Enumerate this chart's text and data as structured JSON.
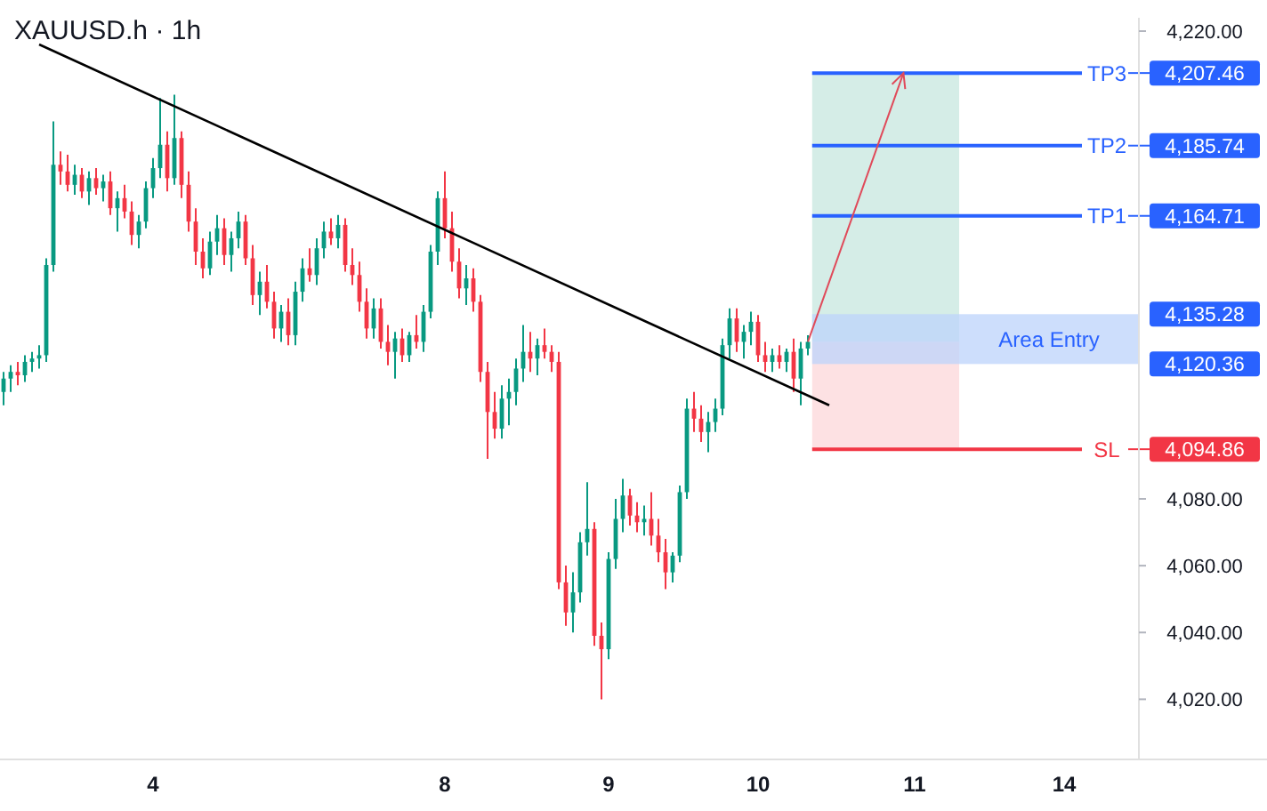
{
  "chart_data": {
    "type": "candlestick",
    "title": "XAUUSD.h · 1h",
    "categories": [
      null,
      null,
      null,
      null,
      null,
      null,
      null,
      null,
      null,
      null,
      null,
      null,
      null,
      null,
      null,
      null,
      null,
      null,
      null,
      null,
      null,
      "4",
      null,
      null,
      null,
      null,
      null,
      null,
      null,
      null,
      null,
      null,
      null,
      null,
      null,
      null,
      null,
      null,
      null,
      null,
      null,
      null,
      null,
      null,
      null,
      null,
      null,
      null,
      null,
      null,
      null,
      null,
      null,
      null,
      null,
      null,
      null,
      null,
      null,
      null,
      null,
      null,
      "8",
      null,
      null,
      null,
      null,
      null,
      null,
      null,
      null,
      null,
      null,
      null,
      null,
      null,
      null,
      null,
      null,
      null,
      null,
      null,
      null,
      null,
      null,
      "9",
      null,
      null,
      null,
      null,
      null,
      null,
      null,
      null,
      null,
      null,
      null,
      null,
      null,
      null,
      null,
      null,
      null,
      null,
      null,
      null,
      "10",
      null,
      null,
      null,
      null,
      null,
      null,
      null,
      null,
      null,
      null,
      null,
      null,
      null,
      null,
      null,
      null,
      null,
      null,
      null,
      null,
      null,
      "11",
      null,
      null,
      null,
      null,
      null,
      null,
      null,
      null,
      null,
      null,
      null,
      null,
      null,
      null,
      null,
      null,
      null,
      null,
      null,
      null,
      "14",
      null,
      null,
      null,
      null,
      null,
      null,
      null,
      null,
      null,
      null
    ],
    "ohlc": [
      [
        4112,
        4118,
        4108,
        4116
      ],
      [
        4116,
        4120,
        4112,
        4118
      ],
      [
        4118,
        4121,
        4114,
        4117
      ],
      [
        4117,
        4123,
        4115,
        4121
      ],
      [
        4121,
        4124,
        4118,
        4122
      ],
      [
        4122,
        4126,
        4119,
        4123
      ],
      [
        4123,
        4152,
        4121,
        4150
      ],
      [
        4150,
        4193,
        4148,
        4180
      ],
      [
        4180,
        4184,
        4174,
        4178
      ],
      [
        4178,
        4183,
        4172,
        4174
      ],
      [
        4174,
        4180,
        4171,
        4177
      ],
      [
        4177,
        4179,
        4170,
        4172
      ],
      [
        4172,
        4178,
        4168,
        4176
      ],
      [
        4176,
        4179,
        4171,
        4173
      ],
      [
        4173,
        4177,
        4169,
        4175
      ],
      [
        4175,
        4178,
        4165,
        4167
      ],
      [
        4167,
        4172,
        4160,
        4170
      ],
      [
        4170,
        4174,
        4164,
        4166
      ],
      [
        4166,
        4169,
        4156,
        4159
      ],
      [
        4159,
        4165,
        4155,
        4163
      ],
      [
        4163,
        4175,
        4161,
        4173
      ],
      [
        4173,
        4182,
        4170,
        4179
      ],
      [
        4179,
        4200,
        4176,
        4186
      ],
      [
        4186,
        4190,
        4172,
        4176
      ],
      [
        4176,
        4201,
        4174,
        4188
      ],
      [
        4188,
        4190,
        4170,
        4174
      ],
      [
        4174,
        4178,
        4160,
        4163
      ],
      [
        4163,
        4167,
        4150,
        4154
      ],
      [
        4154,
        4158,
        4146,
        4149
      ],
      [
        4149,
        4160,
        4147,
        4157
      ],
      [
        4157,
        4165,
        4153,
        4161
      ],
      [
        4161,
        4164,
        4150,
        4153
      ],
      [
        4153,
        4160,
        4148,
        4158
      ],
      [
        4158,
        4166,
        4155,
        4163
      ],
      [
        4163,
        4165,
        4150,
        4152
      ],
      [
        4152,
        4156,
        4138,
        4141
      ],
      [
        4141,
        4148,
        4135,
        4145
      ],
      [
        4145,
        4150,
        4137,
        4139
      ],
      [
        4139,
        4142,
        4128,
        4131
      ],
      [
        4131,
        4138,
        4127,
        4136
      ],
      [
        4136,
        4140,
        4126,
        4129
      ],
      [
        4129,
        4145,
        4126,
        4142
      ],
      [
        4142,
        4152,
        4139,
        4149
      ],
      [
        4149,
        4155,
        4145,
        4147
      ],
      [
        4147,
        4158,
        4144,
        4155
      ],
      [
        4155,
        4163,
        4152,
        4160
      ],
      [
        4160,
        4164,
        4156,
        4158
      ],
      [
        4158,
        4165,
        4155,
        4162
      ],
      [
        4162,
        4164,
        4148,
        4150
      ],
      [
        4150,
        4155,
        4144,
        4147
      ],
      [
        4147,
        4151,
        4136,
        4139
      ],
      [
        4139,
        4143,
        4128,
        4131
      ],
      [
        4131,
        4140,
        4128,
        4137
      ],
      [
        4137,
        4140,
        4125,
        4127
      ],
      [
        4127,
        4132,
        4120,
        4124
      ],
      [
        4124,
        4130,
        4116,
        4128
      ],
      [
        4128,
        4131,
        4121,
        4123
      ],
      [
        4123,
        4130,
        4121,
        4129
      ],
      [
        4129,
        4135,
        4125,
        4127
      ],
      [
        4127,
        4138,
        4124,
        4136
      ],
      [
        4136,
        4156,
        4134,
        4154
      ],
      [
        4154,
        4172,
        4150,
        4170
      ],
      [
        4170,
        4178,
        4158,
        4161
      ],
      [
        4161,
        4166,
        4148,
        4151
      ],
      [
        4151,
        4155,
        4140,
        4143
      ],
      [
        4143,
        4150,
        4138,
        4146
      ],
      [
        4146,
        4149,
        4136,
        4139
      ],
      [
        4139,
        4141,
        4115,
        4118
      ],
      [
        4118,
        4121,
        4092,
        4106
      ],
      [
        4106,
        4112,
        4098,
        4101
      ],
      [
        4101,
        4114,
        4098,
        4110
      ],
      [
        4110,
        4116,
        4102,
        4112
      ],
      [
        4112,
        4122,
        4108,
        4119
      ],
      [
        4119,
        4132,
        4115,
        4124
      ],
      [
        4124,
        4130,
        4118,
        4122
      ],
      [
        4122,
        4128,
        4117,
        4126
      ],
      [
        4126,
        4131,
        4122,
        4124
      ],
      [
        4124,
        4126,
        4118,
        4121
      ],
      [
        4121,
        4124,
        4053,
        4055
      ],
      [
        4055,
        4060,
        4042,
        4046
      ],
      [
        4046,
        4058,
        4040,
        4052
      ],
      [
        4052,
        4070,
        4049,
        4067
      ],
      [
        4067,
        4085,
        4063,
        4071
      ],
      [
        4071,
        4073,
        4036,
        4039
      ],
      [
        4039,
        4043,
        4020,
        4035
      ],
      [
        4035,
        4064,
        4032,
        4062
      ],
      [
        4062,
        4080,
        4059,
        4074
      ],
      [
        4074,
        4086,
        4070,
        4081
      ],
      [
        4081,
        4083,
        4072,
        4075
      ],
      [
        4075,
        4079,
        4070,
        4073
      ],
      [
        4073,
        4078,
        4069,
        4074
      ],
      [
        4074,
        4082,
        4066,
        4069
      ],
      [
        4069,
        4074,
        4061,
        4064
      ],
      [
        4064,
        4068,
        4053,
        4058
      ],
      [
        4058,
        4064,
        4055,
        4063
      ],
      [
        4063,
        4084,
        4061,
        4082
      ],
      [
        4082,
        4110,
        4080,
        4107
      ],
      [
        4107,
        4112,
        4100,
        4104
      ],
      [
        4104,
        4108,
        4097,
        4100
      ],
      [
        4100,
        4106,
        4094,
        4103
      ],
      [
        4103,
        4110,
        4100,
        4107
      ],
      [
        4107,
        4128,
        4105,
        4126
      ],
      [
        4126,
        4137,
        4122,
        4134
      ],
      [
        4134,
        4137,
        4124,
        4127
      ],
      [
        4127,
        4132,
        4122,
        4130
      ],
      [
        4130,
        4136,
        4126,
        4133
      ],
      [
        4133,
        4135,
        4121,
        4123
      ],
      [
        4123,
        4127,
        4118,
        4121
      ],
      [
        4121,
        4125,
        4118,
        4123
      ],
      [
        4123,
        4126,
        4119,
        4121
      ],
      [
        4121,
        4125,
        4118,
        4124
      ],
      [
        4124,
        4128,
        4112,
        4116
      ],
      [
        4116,
        4127,
        4108,
        4125
      ],
      [
        4125,
        4129,
        4123,
        4127
      ],
      null,
      null,
      null,
      null,
      null,
      null,
      null,
      null,
      null,
      null,
      null,
      null,
      null,
      null,
      null,
      null,
      null,
      null,
      null,
      null,
      null,
      null,
      null,
      null,
      null,
      null,
      null,
      null,
      null,
      null,
      null,
      null,
      null,
      null,
      null,
      null,
      null,
      null,
      null,
      null,
      null,
      null,
      null,
      null,
      null,
      null
    ],
    "series": [
      {
        "type": "line",
        "color": "#000000",
        "values": [
          null,
          null,
          null,
          null,
          null,
          4216,
          null,
          null,
          null,
          null,
          null,
          null,
          null,
          null,
          null,
          null,
          null,
          null,
          null,
          null,
          null,
          null,
          null,
          null,
          null,
          null,
          null,
          null,
          null,
          null,
          null,
          null,
          null,
          null,
          null,
          null,
          null,
          null,
          null,
          null,
          null,
          null,
          null,
          null,
          null,
          null,
          null,
          null,
          null,
          null,
          null,
          null,
          null,
          null,
          null,
          null,
          null,
          null,
          null,
          null,
          null,
          null,
          null,
          null,
          null,
          null,
          null,
          null,
          null,
          null,
          null,
          null,
          null,
          null,
          null,
          null,
          null,
          null,
          null,
          null,
          null,
          null,
          null,
          null,
          null,
          null,
          null,
          null,
          null,
          null,
          null,
          null,
          null,
          null,
          null,
          null,
          null,
          null,
          null,
          null,
          null,
          null,
          null,
          null,
          null,
          null,
          null,
          null,
          null,
          null,
          null,
          null,
          null,
          null,
          null,
          null,
          4108,
          null,
          null,
          null,
          null,
          null,
          null,
          null,
          null,
          null,
          null,
          null,
          null,
          null,
          null,
          null,
          null,
          null,
          null,
          null,
          null,
          null,
          null,
          null,
          null,
          null,
          null,
          null,
          null,
          null,
          null,
          null,
          null,
          null,
          null,
          null,
          null,
          null,
          null,
          null,
          null,
          null,
          null,
          null
        ]
      }
    ],
    "ylim": [
      4002,
      4224
    ],
    "yticks": [
      {
        "value": 4220,
        "label": "4,220.00"
      },
      {
        "value": 4080,
        "label": "4,080.00"
      },
      {
        "value": 4060,
        "label": "4,060.00"
      },
      {
        "value": 4040,
        "label": "4,040.00"
      },
      {
        "value": 4020,
        "label": "4,020.00"
      }
    ],
    "annotations": [
      "4,207.46",
      "4,185.74",
      "4,164.71",
      "4,135.28",
      "4,120.36",
      "4,094.86"
    ],
    "ref_lines": [
      {
        "axis": "y",
        "value": 4207.46,
        "label": "TP3",
        "color": "#2962ff"
      },
      {
        "axis": "y",
        "value": 4185.74,
        "label": "TP2",
        "color": "#2962ff"
      },
      {
        "axis": "y",
        "value": 4164.71,
        "label": "TP1",
        "color": "#2962ff"
      },
      {
        "axis": "y",
        "value": 4094.86,
        "label": "SL",
        "color": "#f23645"
      }
    ],
    "bands": [
      {
        "axis": "y",
        "from": 4127,
        "to": 4207.46,
        "color": "#d5ede7"
      },
      {
        "axis": "y",
        "from": 4094.86,
        "to": 4127,
        "color": "#fde1e3"
      },
      {
        "axis": "y",
        "from": 4120.36,
        "to": 4135.28,
        "label": "Area Entry",
        "color": "#bcd3fb"
      }
    ],
    "data_labels": false
  }
}
